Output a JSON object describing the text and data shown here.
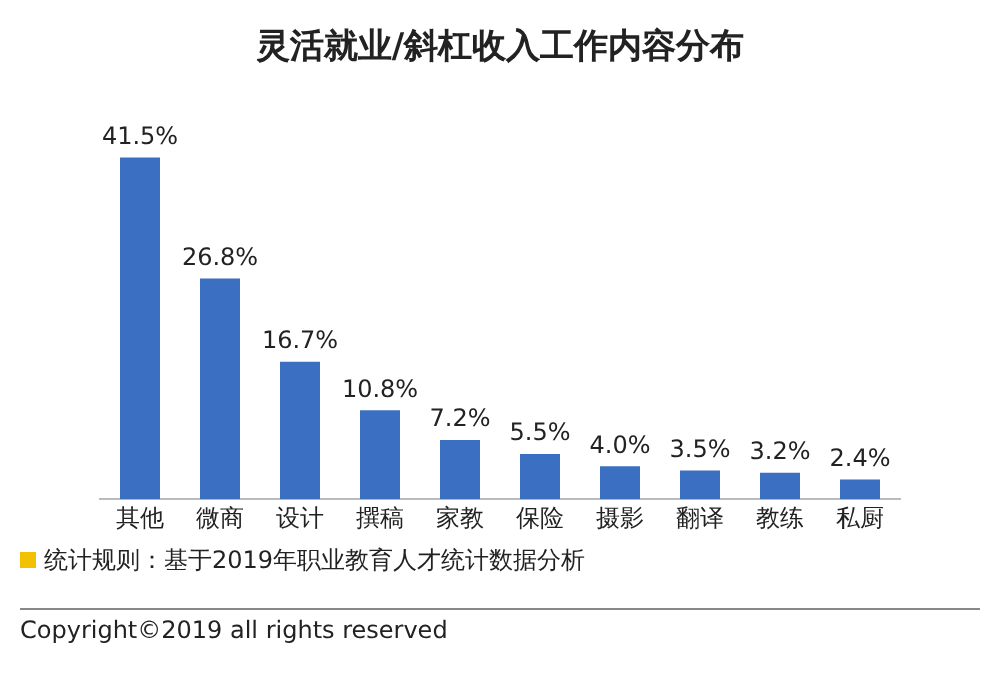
{
  "chart_data": {
    "type": "bar",
    "title": "灵活就业/斜杠收入工作内容分布",
    "categories": [
      "其他",
      "微商",
      "设计",
      "撰稿",
      "家教",
      "保险",
      "摄影",
      "翻译",
      "教练",
      "私厨"
    ],
    "values": [
      41.5,
      26.8,
      16.7,
      10.8,
      7.2,
      5.5,
      4.0,
      3.5,
      3.2,
      2.4
    ],
    "value_labels": [
      "41.5%",
      "26.8%",
      "16.7%",
      "10.8%",
      "7.2%",
      "5.5%",
      "4.0%",
      "3.5%",
      "3.2%",
      "2.4%"
    ],
    "color": "#3b6fc2",
    "tick_labels": "x",
    "grid": false,
    "legend": false,
    "annotations": [
      "统计规则：基于2019年职业教育人才统计数据分析",
      "Copyright©2019 all rights reserved"
    ]
  }
}
